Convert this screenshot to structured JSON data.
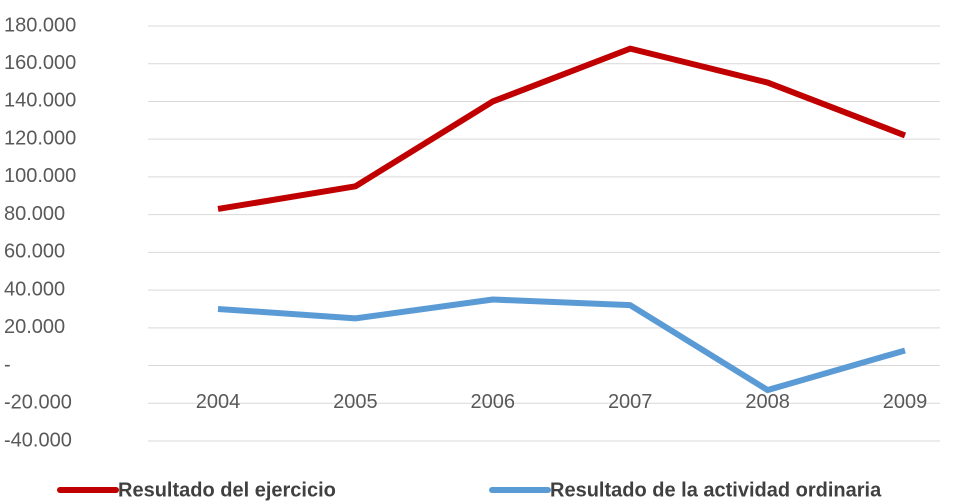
{
  "chart_data": {
    "type": "line",
    "categories": [
      "2004",
      "2005",
      "2006",
      "2007",
      "2008",
      "2009"
    ],
    "series": [
      {
        "name": "Resultado del ejercicio",
        "color": "#c00000",
        "values": [
          83000,
          95000,
          140000,
          168000,
          150000,
          122000
        ]
      },
      {
        "name": "Resultado de la actividad ordinaria",
        "color": "#5b9bd5",
        "values": [
          30000,
          25000,
          35000,
          32000,
          -13000,
          8000
        ]
      }
    ],
    "ylim": [
      -40000,
      180000
    ],
    "yticks": [
      {
        "value": -40000,
        "label": "-40.000"
      },
      {
        "value": -20000,
        "label": "-20.000"
      },
      {
        "value": 0,
        "label": "-"
      },
      {
        "value": 20000,
        "label": "20.000"
      },
      {
        "value": 40000,
        "label": "40.000"
      },
      {
        "value": 60000,
        "label": "60.000"
      },
      {
        "value": 80000,
        "label": "80.000"
      },
      {
        "value": 100000,
        "label": "100.000"
      },
      {
        "value": 120000,
        "label": "120.000"
      },
      {
        "value": 140000,
        "label": "140.000"
      },
      {
        "value": 160000,
        "label": "160.000"
      },
      {
        "value": 180000,
        "label": "180.000"
      }
    ],
    "grid": true,
    "legend": "bottom"
  }
}
